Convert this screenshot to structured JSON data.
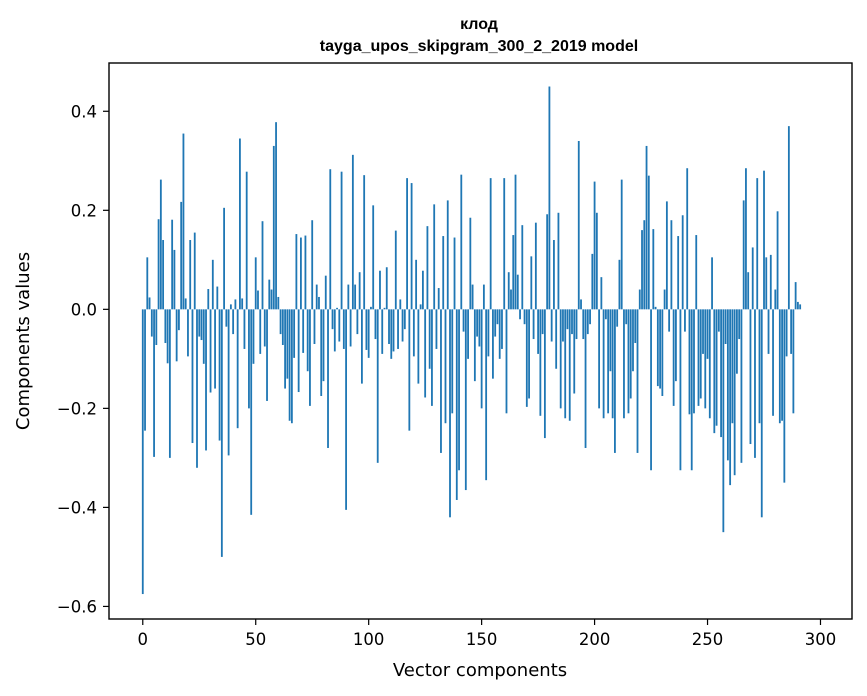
{
  "chart_data": {
    "type": "bar",
    "title": "клод",
    "subtitle": "tayga_upos_skipgram_300_2_2019 model",
    "xlabel": "Vector components",
    "ylabel": "Components values",
    "xlim": [
      -14.95,
      313.95
    ],
    "ylim": [
      -0.6254,
      0.4975
    ],
    "xticks": [
      0,
      50,
      100,
      150,
      200,
      250,
      300
    ],
    "xtick_labels": [
      "0",
      "50",
      "100",
      "150",
      "200",
      "250",
      "300"
    ],
    "yticks": [
      -0.6,
      -0.4,
      -0.2,
      0.0,
      0.2,
      0.4
    ],
    "ytick_labels": [
      "−0.6",
      "−0.4",
      "−0.2",
      "0.0",
      "0.2",
      "0.4"
    ],
    "bar_color": "#1f77b4",
    "grid": false,
    "values": [
      -0.575,
      -0.245,
      0.105,
      0.024,
      -0.055,
      -0.298,
      -0.072,
      0.182,
      0.262,
      0.14,
      -0.068,
      -0.109,
      -0.3,
      0.181,
      0.12,
      -0.105,
      -0.042,
      0.217,
      0.355,
      0.022,
      -0.095,
      0.14,
      -0.27,
      0.155,
      -0.32,
      -0.055,
      -0.062,
      -0.11,
      -0.285,
      0.041,
      -0.168,
      0.1,
      -0.16,
      0.046,
      -0.265,
      -0.5,
      0.205,
      -0.035,
      -0.295,
      0.01,
      -0.05,
      0.02,
      -0.24,
      0.345,
      0.022,
      -0.08,
      0.278,
      -0.2,
      -0.415,
      -0.11,
      0.105,
      0.038,
      -0.09,
      0.178,
      -0.075,
      -0.185,
      0.06,
      0.04,
      0.33,
      0.378,
      0.025,
      -0.05,
      -0.072,
      -0.16,
      -0.14,
      -0.225,
      -0.23,
      -0.098,
      0.152,
      -0.167,
      0.145,
      -0.088,
      0.149,
      -0.125,
      -0.195,
      0.18,
      -0.07,
      0.05,
      0.025,
      -0.175,
      -0.145,
      0.068,
      -0.28,
      0.283,
      -0.04,
      -0.085,
      0.003,
      -0.065,
      0.278,
      -0.08,
      -0.405,
      0.05,
      -0.075,
      0.312,
      0.05,
      -0.05,
      0.075,
      -0.15,
      0.271,
      -0.082,
      -0.098,
      0.005,
      0.21,
      -0.06,
      -0.31,
      0.078,
      -0.09,
      0.003,
      0.085,
      -0.07,
      -0.1,
      -0.085,
      0.159,
      -0.08,
      0.02,
      -0.065,
      -0.04,
      0.265,
      -0.245,
      0.255,
      -0.095,
      0.1,
      -0.15,
      0.01,
      0.078,
      -0.178,
      0.168,
      -0.12,
      -0.195,
      0.212,
      -0.08,
      0.043,
      -0.29,
      0.148,
      -0.23,
      0.22,
      -0.42,
      -0.21,
      0.145,
      -0.385,
      -0.325,
      0.272,
      -0.045,
      -0.365,
      -0.1,
      0.185,
      0.05,
      -0.145,
      -0.055,
      -0.075,
      -0.2,
      0.05,
      -0.345,
      -0.095,
      0.265,
      -0.14,
      -0.055,
      -0.03,
      -0.1,
      -0.08,
      0.265,
      -0.21,
      0.075,
      0.04,
      0.15,
      0.272,
      0.07,
      -0.02,
      0.17,
      -0.03,
      -0.197,
      -0.18,
      0.107,
      -0.06,
      0.175,
      -0.09,
      -0.215,
      -0.05,
      -0.26,
      0.192,
      0.45,
      -0.065,
      0.14,
      -0.12,
      0.195,
      -0.2,
      -0.065,
      -0.22,
      -0.04,
      -0.225,
      -0.05,
      -0.17,
      -0.06,
      0.34,
      0.02,
      -0.06,
      -0.28,
      -0.05,
      -0.03,
      0.112,
      0.258,
      0.195,
      -0.2,
      0.065,
      -0.22,
      -0.02,
      -0.21,
      -0.125,
      -0.22,
      -0.29,
      -0.035,
      0.1,
      0.262,
      -0.22,
      -0.03,
      -0.21,
      -0.18,
      -0.125,
      -0.068,
      -0.29,
      0.04,
      0.16,
      0.18,
      0.33,
      0.27,
      -0.325,
      0.162,
      0.005,
      -0.155,
      -0.16,
      -0.175,
      0.04,
      0.218,
      -0.045,
      0.18,
      -0.195,
      -0.145,
      0.148,
      -0.325,
      0.19,
      -0.045,
      0.285,
      -0.212,
      -0.325,
      -0.21,
      0.15,
      -0.195,
      -0.18,
      -0.09,
      -0.2,
      -0.1,
      -0.22,
      0.105,
      -0.25,
      -0.235,
      -0.045,
      -0.258,
      -0.45,
      -0.07,
      -0.305,
      -0.355,
      -0.23,
      -0.335,
      -0.13,
      -0.06,
      -0.31,
      0.22,
      0.285,
      0.075,
      -0.272,
      0.125,
      -0.3,
      0.265,
      -0.23,
      -0.42,
      0.28,
      0.105,
      -0.09,
      0.11,
      -0.215,
      0.04,
      0.198,
      -0.23,
      -0.225,
      -0.35,
      -0.095,
      0.37,
      -0.09,
      -0.21,
      0.055,
      0.015,
      0.01
    ]
  }
}
